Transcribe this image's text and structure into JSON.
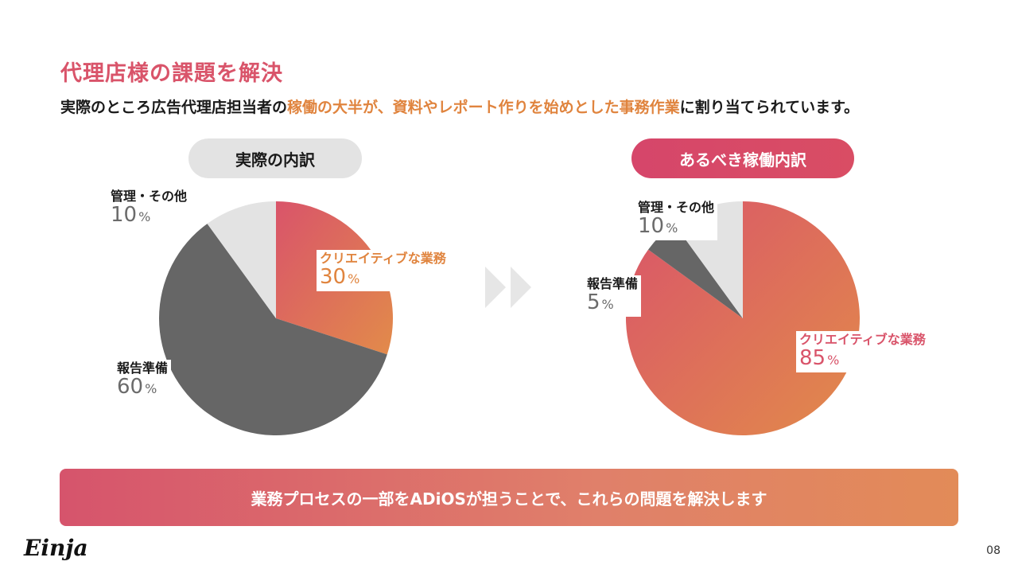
{
  "title": "代理店様の課題を解決",
  "subtitle": {
    "pre": "実際のところ広告代理店担当者の",
    "highlight": "稼働の大半が、資料やレポート作りを始めとした事務作業",
    "post": "に割り当てられています。"
  },
  "colors": {
    "pink": "#d9546a",
    "orange": "#e0843e",
    "dark_gray": "#666666",
    "light_gray": "#e3e3e3"
  },
  "chart_data": [
    {
      "type": "pie",
      "title": "実際の内訳",
      "slices": [
        {
          "label": "クリエイティブな業務",
          "value": 30,
          "unit": "%"
        },
        {
          "label": "報告準備",
          "value": 60,
          "unit": "%"
        },
        {
          "label": "管理・その他",
          "value": 10,
          "unit": "%"
        }
      ]
    },
    {
      "type": "pie",
      "title": "あるべき稼働内訳",
      "slices": [
        {
          "label": "クリエイティブな業務",
          "value": 85,
          "unit": "%"
        },
        {
          "label": "報告準備",
          "value": 5,
          "unit": "%"
        },
        {
          "label": "管理・その他",
          "value": 10,
          "unit": "%"
        }
      ]
    }
  ],
  "arrow_icon": "double-chevron-right-icon",
  "banner": "業務プロセスの一部をADiOSが担うことで、これらの問題を解決します",
  "logo": "Einja",
  "page_number": "08"
}
